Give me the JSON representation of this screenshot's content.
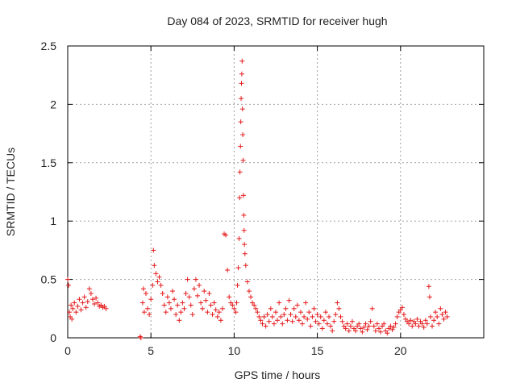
{
  "chart_data": {
    "type": "scatter",
    "title": "Day 084 of 2023, SRMTID for receiver hugh",
    "xlabel": "GPS time / hours",
    "ylabel": "SRMTID / TECUs",
    "xlim": [
      0,
      25
    ],
    "ylim": [
      0,
      2.5
    ],
    "xticks": [
      "0",
      "5",
      "10",
      "15",
      "20"
    ],
    "yticks": [
      "0",
      "0.5",
      "1",
      "1.5",
      "2",
      "2.5"
    ],
    "grid": true,
    "marker": "+",
    "colors": {
      "series": "#e41a1c",
      "grid": "#a0a0a0",
      "axis": "#000000"
    },
    "series": [
      {
        "name": "SRMTID",
        "points": [
          [
            0.0,
            0.5
          ],
          [
            0.05,
            0.45
          ],
          [
            0.1,
            0.22
          ],
          [
            0.15,
            0.18
          ],
          [
            0.2,
            0.28
          ],
          [
            0.25,
            0.16
          ],
          [
            0.3,
            0.25
          ],
          [
            0.4,
            0.3
          ],
          [
            0.5,
            0.22
          ],
          [
            0.6,
            0.27
          ],
          [
            0.7,
            0.33
          ],
          [
            0.8,
            0.24
          ],
          [
            0.9,
            0.3
          ],
          [
            1.0,
            0.35
          ],
          [
            1.1,
            0.26
          ],
          [
            1.2,
            0.31
          ],
          [
            1.3,
            0.42
          ],
          [
            1.4,
            0.38
          ],
          [
            1.5,
            0.33
          ],
          [
            1.6,
            0.29
          ],
          [
            1.7,
            0.34
          ],
          [
            1.8,
            0.3
          ],
          [
            1.9,
            0.27
          ],
          [
            2.0,
            0.28
          ],
          [
            2.1,
            0.26
          ],
          [
            2.2,
            0.27
          ],
          [
            2.3,
            0.25
          ],
          [
            4.35,
            0.01
          ],
          [
            4.4,
            0.0
          ],
          [
            4.5,
            0.3
          ],
          [
            4.55,
            0.42
          ],
          [
            4.6,
            0.22
          ],
          [
            4.7,
            0.38
          ],
          [
            4.8,
            0.25
          ],
          [
            4.9,
            0.2
          ],
          [
            5.0,
            0.33
          ],
          [
            5.1,
            0.45
          ],
          [
            5.15,
            0.75
          ],
          [
            5.2,
            0.62
          ],
          [
            5.3,
            0.55
          ],
          [
            5.4,
            0.48
          ],
          [
            5.5,
            0.52
          ],
          [
            5.6,
            0.45
          ],
          [
            5.7,
            0.38
          ],
          [
            5.8,
            0.28
          ],
          [
            5.9,
            0.22
          ],
          [
            6.0,
            0.35
          ],
          [
            6.1,
            0.3
          ],
          [
            6.2,
            0.25
          ],
          [
            6.3,
            0.4
          ],
          [
            6.4,
            0.33
          ],
          [
            6.5,
            0.2
          ],
          [
            6.6,
            0.28
          ],
          [
            6.7,
            0.15
          ],
          [
            6.8,
            0.22
          ],
          [
            6.9,
            0.3
          ],
          [
            7.0,
            0.25
          ],
          [
            7.1,
            0.38
          ],
          [
            7.2,
            0.5
          ],
          [
            7.3,
            0.35
          ],
          [
            7.4,
            0.28
          ],
          [
            7.5,
            0.2
          ],
          [
            7.6,
            0.42
          ],
          [
            7.7,
            0.5
          ],
          [
            7.8,
            0.36
          ],
          [
            7.9,
            0.45
          ],
          [
            8.0,
            0.3
          ],
          [
            8.1,
            0.25
          ],
          [
            8.2,
            0.4
          ],
          [
            8.3,
            0.32
          ],
          [
            8.4,
            0.22
          ],
          [
            8.5,
            0.38
          ],
          [
            8.6,
            0.28
          ],
          [
            8.7,
            0.2
          ],
          [
            8.8,
            0.3
          ],
          [
            8.9,
            0.24
          ],
          [
            9.0,
            0.18
          ],
          [
            9.1,
            0.22
          ],
          [
            9.2,
            0.15
          ],
          [
            9.3,
            0.25
          ],
          [
            9.4,
            0.89
          ],
          [
            9.5,
            0.88
          ],
          [
            9.6,
            0.58
          ],
          [
            9.7,
            0.35
          ],
          [
            9.8,
            0.3
          ],
          [
            9.9,
            0.28
          ],
          [
            10.0,
            0.25
          ],
          [
            10.1,
            0.22
          ],
          [
            10.15,
            0.3
          ],
          [
            10.2,
            0.45
          ],
          [
            10.25,
            0.6
          ],
          [
            10.3,
            0.85
          ],
          [
            10.33,
            1.2
          ],
          [
            10.35,
            1.42
          ],
          [
            10.38,
            1.64
          ],
          [
            10.4,
            1.85
          ],
          [
            10.42,
            2.05
          ],
          [
            10.44,
            2.18
          ],
          [
            10.46,
            2.26
          ],
          [
            10.48,
            2.37
          ],
          [
            10.5,
            1.96
          ],
          [
            10.52,
            1.74
          ],
          [
            10.54,
            1.52
          ],
          [
            10.56,
            1.22
          ],
          [
            10.58,
            1.05
          ],
          [
            10.6,
            0.92
          ],
          [
            10.62,
            0.8
          ],
          [
            10.65,
            0.72
          ],
          [
            10.7,
            0.62
          ],
          [
            10.8,
            0.48
          ],
          [
            10.9,
            0.4
          ],
          [
            11.0,
            0.35
          ],
          [
            11.1,
            0.3
          ],
          [
            11.2,
            0.28
          ],
          [
            11.3,
            0.25
          ],
          [
            11.4,
            0.22
          ],
          [
            11.5,
            0.18
          ],
          [
            11.6,
            0.15
          ],
          [
            11.7,
            0.12
          ],
          [
            11.8,
            0.18
          ],
          [
            11.9,
            0.1
          ],
          [
            12.0,
            0.2
          ],
          [
            12.1,
            0.14
          ],
          [
            12.2,
            0.25
          ],
          [
            12.3,
            0.18
          ],
          [
            12.4,
            0.12
          ],
          [
            12.5,
            0.22
          ],
          [
            12.6,
            0.15
          ],
          [
            12.7,
            0.3
          ],
          [
            12.8,
            0.18
          ],
          [
            12.9,
            0.12
          ],
          [
            13.0,
            0.2
          ],
          [
            13.1,
            0.25
          ],
          [
            13.2,
            0.15
          ],
          [
            13.3,
            0.32
          ],
          [
            13.4,
            0.2
          ],
          [
            13.5,
            0.14
          ],
          [
            13.6,
            0.25
          ],
          [
            13.7,
            0.18
          ],
          [
            13.8,
            0.28
          ],
          [
            13.9,
            0.15
          ],
          [
            14.0,
            0.22
          ],
          [
            14.1,
            0.12
          ],
          [
            14.2,
            0.18
          ],
          [
            14.3,
            0.3
          ],
          [
            14.4,
            0.16
          ],
          [
            14.5,
            0.22
          ],
          [
            14.6,
            0.1
          ],
          [
            14.7,
            0.18
          ],
          [
            14.8,
            0.25
          ],
          [
            14.9,
            0.14
          ],
          [
            15.0,
            0.2
          ],
          [
            15.1,
            0.12
          ],
          [
            15.2,
            0.18
          ],
          [
            15.3,
            0.08
          ],
          [
            15.4,
            0.15
          ],
          [
            15.5,
            0.22
          ],
          [
            15.6,
            0.12
          ],
          [
            15.7,
            0.18
          ],
          [
            15.8,
            0.1
          ],
          [
            15.9,
            0.06
          ],
          [
            16.0,
            0.14
          ],
          [
            16.1,
            0.2
          ],
          [
            16.2,
            0.3
          ],
          [
            16.3,
            0.25
          ],
          [
            16.4,
            0.18
          ],
          [
            16.5,
            0.14
          ],
          [
            16.6,
            0.1
          ],
          [
            16.7,
            0.08
          ],
          [
            16.8,
            0.12
          ],
          [
            16.9,
            0.06
          ],
          [
            17.0,
            0.1
          ],
          [
            17.1,
            0.14
          ],
          [
            17.2,
            0.08
          ],
          [
            17.3,
            0.06
          ],
          [
            17.4,
            0.1
          ],
          [
            17.5,
            0.12
          ],
          [
            17.6,
            0.08
          ],
          [
            17.7,
            0.05
          ],
          [
            17.8,
            0.09
          ],
          [
            17.9,
            0.12
          ],
          [
            18.0,
            0.07
          ],
          [
            18.1,
            0.1
          ],
          [
            18.2,
            0.14
          ],
          [
            18.3,
            0.25
          ],
          [
            18.4,
            0.1
          ],
          [
            18.5,
            0.06
          ],
          [
            18.6,
            0.12
          ],
          [
            18.7,
            0.08
          ],
          [
            18.8,
            0.05
          ],
          [
            18.9,
            0.1
          ],
          [
            19.0,
            0.12
          ],
          [
            19.1,
            0.06
          ],
          [
            19.2,
            0.04
          ],
          [
            19.3,
            0.08
          ],
          [
            19.4,
            0.1
          ],
          [
            19.5,
            0.07
          ],
          [
            19.6,
            0.09
          ],
          [
            19.7,
            0.12
          ],
          [
            19.8,
            0.18
          ],
          [
            19.9,
            0.22
          ],
          [
            20.0,
            0.24
          ],
          [
            20.1,
            0.26
          ],
          [
            20.2,
            0.2
          ],
          [
            20.3,
            0.16
          ],
          [
            20.4,
            0.14
          ],
          [
            20.5,
            0.12
          ],
          [
            20.6,
            0.15
          ],
          [
            20.7,
            0.1
          ],
          [
            20.8,
            0.14
          ],
          [
            20.9,
            0.12
          ],
          [
            21.0,
            0.16
          ],
          [
            21.1,
            0.1
          ],
          [
            21.2,
            0.14
          ],
          [
            21.3,
            0.12
          ],
          [
            21.4,
            0.09
          ],
          [
            21.5,
            0.15
          ],
          [
            21.6,
            0.12
          ],
          [
            21.7,
            0.44
          ],
          [
            21.75,
            0.35
          ],
          [
            21.8,
            0.18
          ],
          [
            21.9,
            0.1
          ],
          [
            22.0,
            0.15
          ],
          [
            22.1,
            0.22
          ],
          [
            22.2,
            0.18
          ],
          [
            22.3,
            0.12
          ],
          [
            22.4,
            0.25
          ],
          [
            22.5,
            0.2
          ],
          [
            22.6,
            0.16
          ],
          [
            22.7,
            0.22
          ],
          [
            22.8,
            0.18
          ]
        ]
      }
    ]
  }
}
